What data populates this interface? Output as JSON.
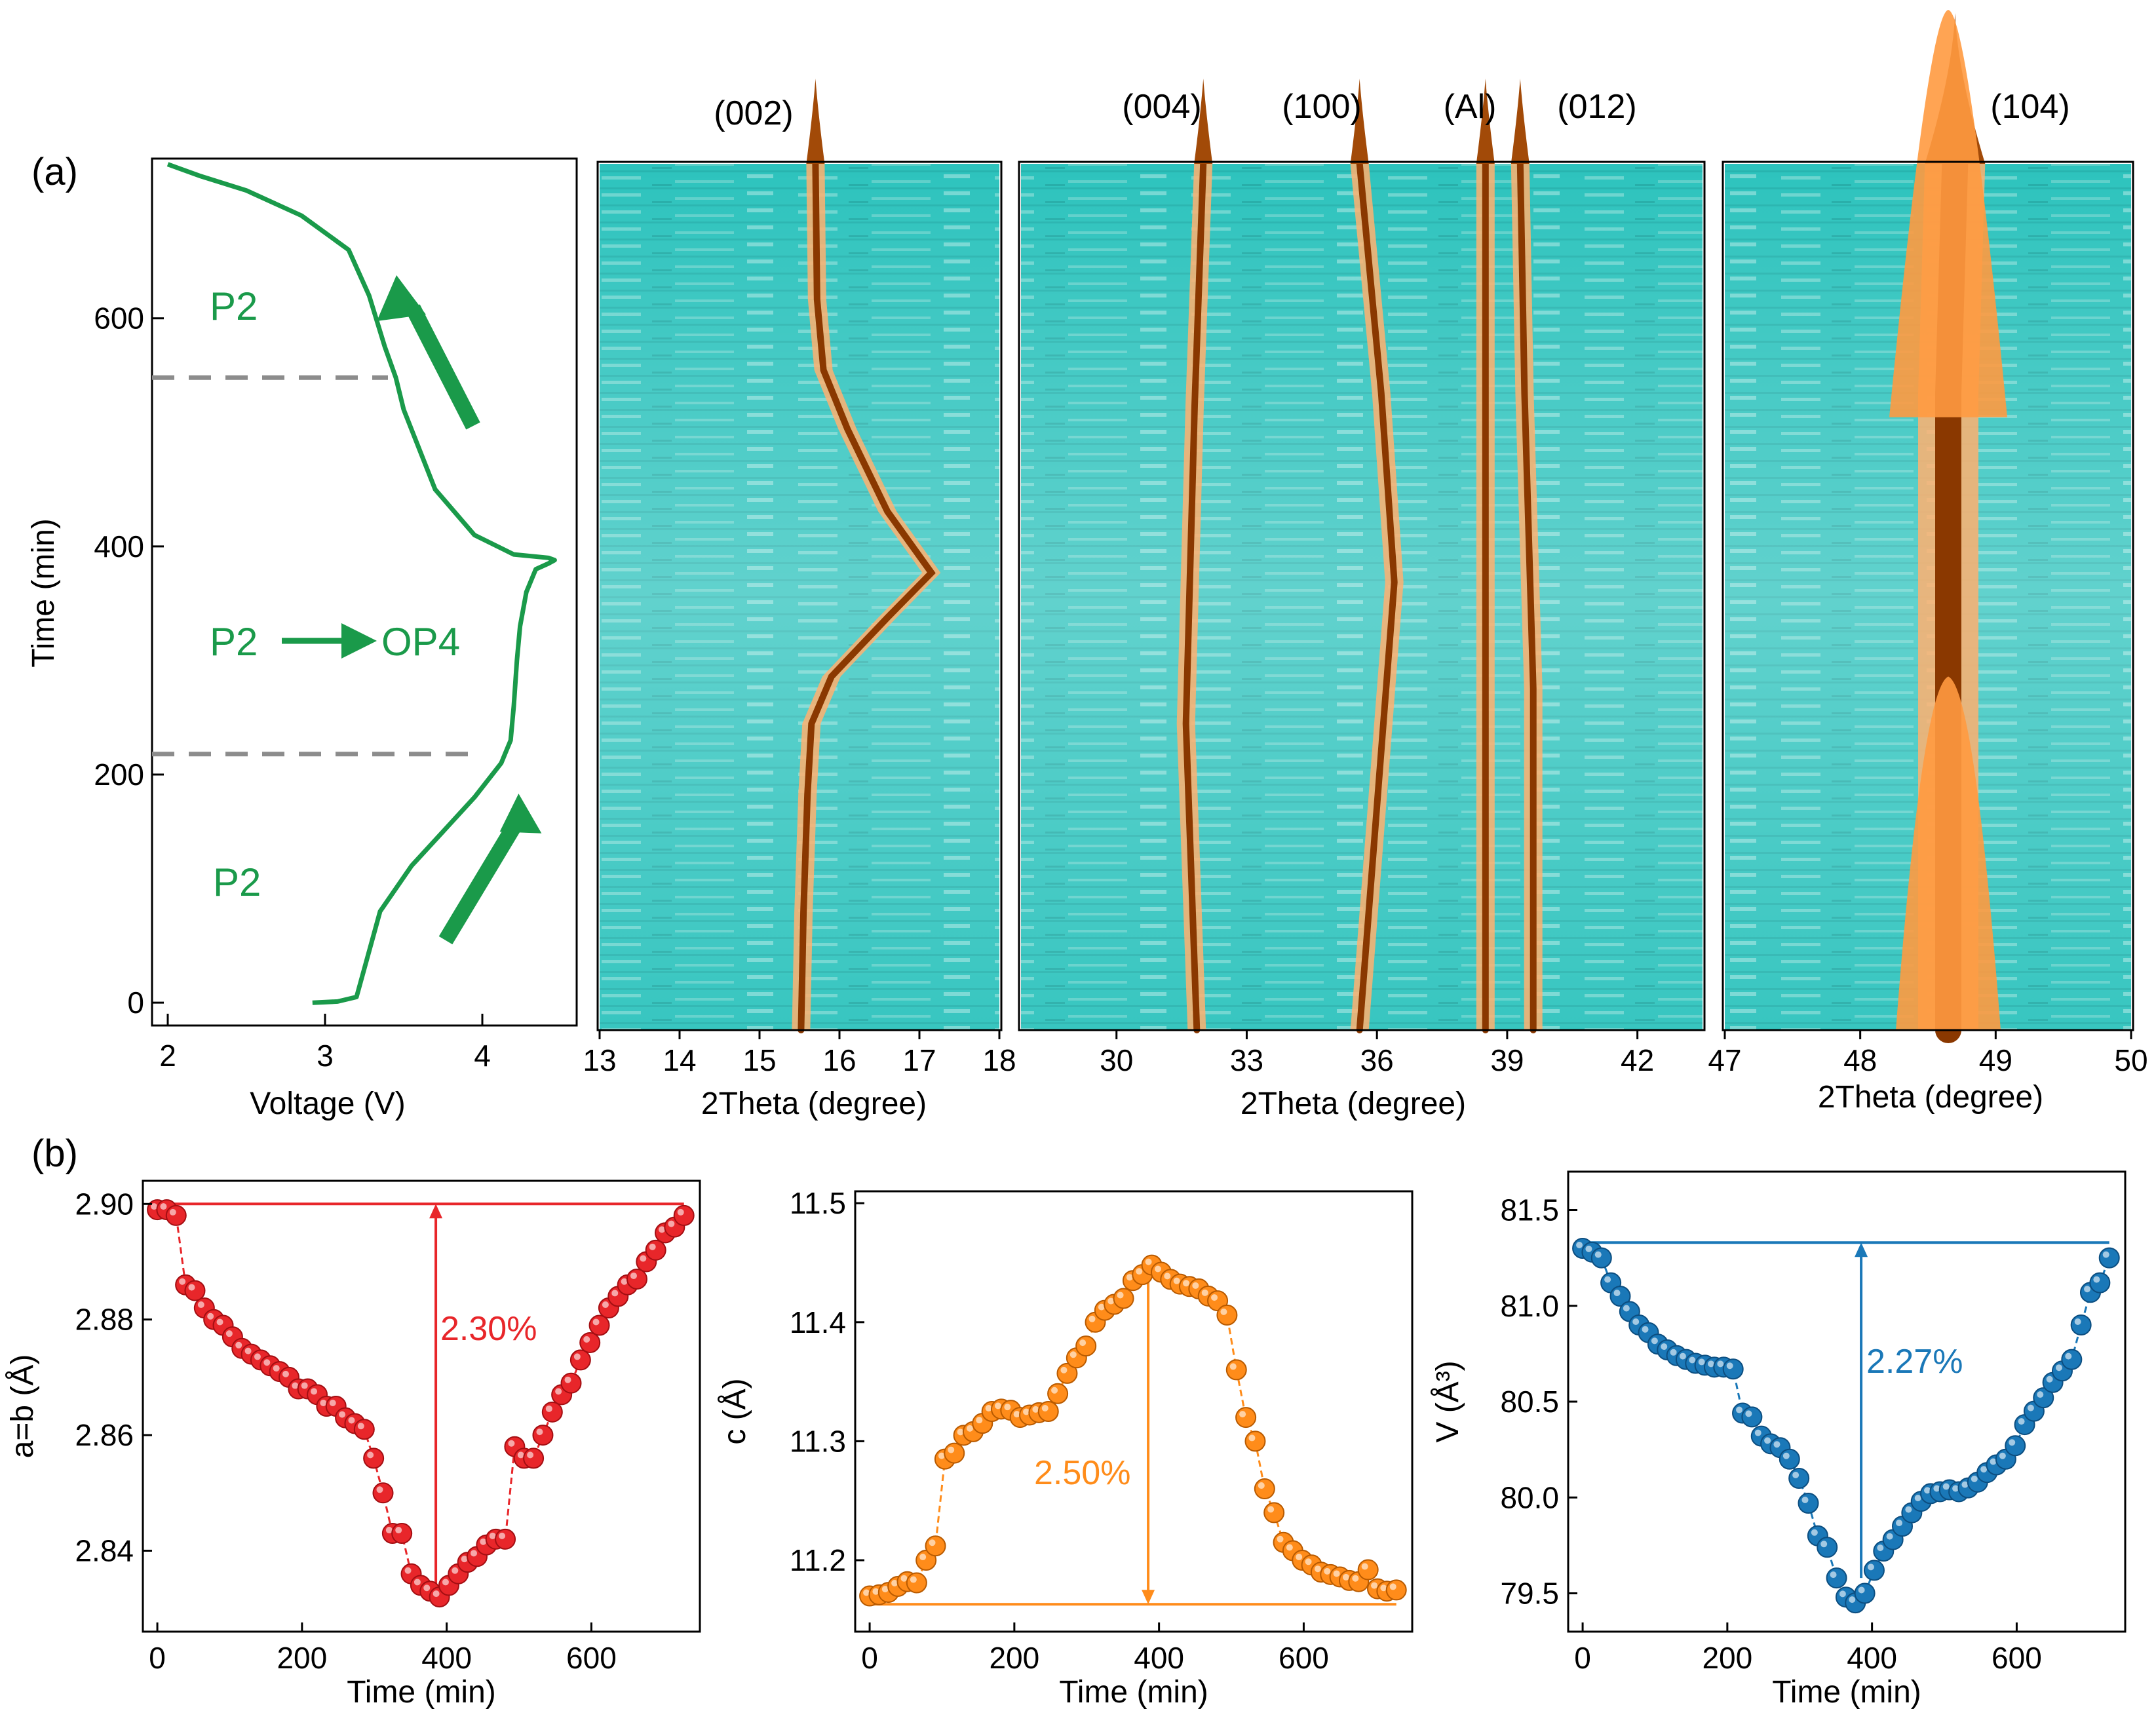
{
  "figure": {
    "panel_a": "(a)",
    "panel_b": "(b)",
    "colors": {
      "teal": "#2ec6c0",
      "orange": "#ff8a1e",
      "brown": "#7a2f00",
      "green": "#1a9a4a",
      "dash": "#8c8c8c",
      "red": "#e8262a",
      "amber": "#ff8c1a",
      "blue": "#1a78b8"
    }
  },
  "chart_data": [
    {
      "id": "voltage",
      "type": "line",
      "title": "",
      "xlabel": "Voltage (V)",
      "ylabel": "Time (min)",
      "xlim": [
        1.9,
        4.6
      ],
      "ylim": [
        -20,
        740
      ],
      "xticks": [
        "2",
        "3",
        "4"
      ],
      "yticks": [
        "0",
        "200",
        "400",
        "600"
      ],
      "annotations": {
        "phase_top": "P2",
        "phase_mid_from": "P2",
        "phase_mid_to": "OP4",
        "phase_bottom": "P2"
      },
      "phase_boundaries_min": [
        218,
        548
      ],
      "series": [
        {
          "name": "Voltage profile",
          "x": [
            2.92,
            3.08,
            3.2,
            3.25,
            3.35,
            3.55,
            3.75,
            3.95,
            4.12,
            4.18,
            4.2,
            4.22,
            4.24,
            4.28,
            4.34,
            4.42,
            4.46,
            4.42,
            4.2,
            3.95,
            3.7,
            3.5,
            3.45,
            3.38,
            3.28,
            3.15,
            2.85,
            2.5,
            2.2,
            2.0
          ],
          "y": [
            0,
            1,
            5,
            30,
            80,
            120,
            150,
            180,
            210,
            230,
            260,
            300,
            330,
            360,
            380,
            385,
            388,
            390,
            393,
            410,
            450,
            520,
            548,
            575,
            620,
            660,
            690,
            712,
            725,
            735
          ]
        }
      ]
    },
    {
      "id": "xrd-002",
      "type": "heatmap",
      "xlabel": "2Theta (degree)",
      "xlim": [
        13,
        18
      ],
      "xticks": [
        "13",
        "14",
        "15",
        "16",
        "17",
        "18"
      ],
      "peaks": [
        {
          "label": "(002)",
          "path": [
            [
              15.52,
              0
            ],
            [
              15.55,
              100
            ],
            [
              15.6,
              200
            ],
            [
              15.65,
              260
            ],
            [
              15.9,
              300
            ],
            [
              16.6,
              350
            ],
            [
              17.15,
              388
            ],
            [
              16.6,
              440
            ],
            [
              16.1,
              510
            ],
            [
              15.8,
              560
            ],
            [
              15.72,
              620
            ],
            [
              15.7,
              735
            ]
          ]
        }
      ]
    },
    {
      "id": "xrd-mid",
      "type": "heatmap",
      "xlabel": "2Theta (degree)",
      "xlim": [
        27.8,
        43.5
      ],
      "xticks": [
        "30",
        "33",
        "36",
        "39",
        "42"
      ],
      "peaks": [
        {
          "label": "(004)",
          "path": [
            [
              31.85,
              0
            ],
            [
              31.6,
              260
            ],
            [
              31.8,
              530
            ],
            [
              32.0,
              735
            ]
          ]
        },
        {
          "label": "(100)",
          "path": [
            [
              35.6,
              0
            ],
            [
              36.4,
              380
            ],
            [
              36.1,
              540
            ],
            [
              35.6,
              735
            ]
          ]
        },
        {
          "label": "(Al)",
          "path": [
            [
              38.5,
              0
            ],
            [
              38.5,
              735
            ]
          ]
        },
        {
          "label": "(012)",
          "path": [
            [
              39.6,
              0
            ],
            [
              39.6,
              290
            ],
            [
              39.4,
              540
            ],
            [
              39.3,
              735
            ]
          ]
        }
      ]
    },
    {
      "id": "xrd-104",
      "type": "heatmap",
      "xlabel": "2Theta (degree)",
      "xlim": [
        47,
        50
      ],
      "xticks": [
        "47",
        "48",
        "49",
        "50"
      ],
      "peaks": [
        {
          "label": "(104)",
          "path": [
            [
              48.65,
              0
            ],
            [
              48.65,
              290
            ],
            [
              48.65,
              540
            ],
            [
              48.7,
              735
            ]
          ]
        }
      ]
    },
    {
      "id": "a-param",
      "type": "scatter",
      "xlabel": "Time (min)",
      "ylabel": "a=b (Å)",
      "xlim": [
        -20,
        750
      ],
      "ylim": [
        2.826,
        2.904
      ],
      "xticks": [
        "0",
        "200",
        "400",
        "600"
      ],
      "yticks": [
        "2.84",
        "2.86",
        "2.88",
        "2.90"
      ],
      "annotation": "2.30%",
      "reference_line": 2.9,
      "arrow": {
        "x": 385,
        "from": 2.833,
        "to": 2.9,
        "direction": "up"
      },
      "series": [
        {
          "name": "a=b",
          "x": [
            0,
            13,
            26,
            39,
            52,
            65,
            78,
            91,
            104,
            117,
            130,
            143,
            156,
            169,
            182,
            195,
            208,
            221,
            234,
            247,
            260,
            273,
            286,
            299,
            312,
            325,
            338,
            351,
            364,
            377,
            390,
            403,
            416,
            429,
            442,
            455,
            468,
            481,
            494,
            507,
            520,
            533,
            546,
            559,
            572,
            585,
            598,
            611,
            624,
            637,
            650,
            663,
            676,
            689,
            702,
            715,
            728
          ],
          "y": [
            2.899,
            2.899,
            2.898,
            2.886,
            2.885,
            2.882,
            2.88,
            2.879,
            2.877,
            2.875,
            2.874,
            2.873,
            2.872,
            2.871,
            2.87,
            2.868,
            2.868,
            2.867,
            2.865,
            2.865,
            2.863,
            2.862,
            2.861,
            2.856,
            2.85,
            2.843,
            2.843,
            2.836,
            2.834,
            2.833,
            2.832,
            2.834,
            2.836,
            2.838,
            2.839,
            2.841,
            2.842,
            2.842,
            2.858,
            2.856,
            2.856,
            2.86,
            2.864,
            2.867,
            2.869,
            2.873,
            2.876,
            2.879,
            2.882,
            2.884,
            2.886,
            2.887,
            2.89,
            2.892,
            2.895,
            2.896,
            2.898
          ]
        }
      ]
    },
    {
      "id": "c-param",
      "type": "scatter",
      "xlabel": "Time (min)",
      "ylabel": "c (Å)",
      "xlim": [
        -20,
        750
      ],
      "ylim": [
        11.14,
        11.51
      ],
      "xticks": [
        "0",
        "200",
        "400",
        "600"
      ],
      "yticks": [
        "11.2",
        "11.3",
        "11.4",
        "11.5"
      ],
      "annotation": "2.50%",
      "reference_line": 11.163,
      "arrow": {
        "x": 385,
        "from": 11.44,
        "to": 11.163,
        "direction": "down"
      },
      "series": [
        {
          "name": "c",
          "x": [
            0,
            13,
            26,
            39,
            52,
            65,
            78,
            91,
            104,
            117,
            130,
            143,
            156,
            169,
            182,
            195,
            208,
            221,
            234,
            247,
            260,
            273,
            286,
            299,
            312,
            325,
            338,
            351,
            364,
            377,
            390,
            403,
            416,
            429,
            442,
            455,
            468,
            481,
            494,
            507,
            520,
            533,
            546,
            559,
            572,
            585,
            598,
            611,
            624,
            637,
            650,
            663,
            676,
            689,
            702,
            715,
            728
          ],
          "y": [
            11.17,
            11.171,
            11.173,
            11.178,
            11.182,
            11.181,
            11.2,
            11.212,
            11.285,
            11.29,
            11.305,
            11.308,
            11.315,
            11.325,
            11.327,
            11.326,
            11.32,
            11.322,
            11.324,
            11.325,
            11.34,
            11.357,
            11.37,
            11.38,
            11.4,
            11.41,
            11.415,
            11.42,
            11.435,
            11.44,
            11.448,
            11.442,
            11.436,
            11.432,
            11.43,
            11.428,
            11.422,
            11.418,
            11.406,
            11.36,
            11.32,
            11.3,
            11.26,
            11.24,
            11.215,
            11.208,
            11.2,
            11.196,
            11.19,
            11.188,
            11.186,
            11.183,
            11.182,
            11.192,
            11.176,
            11.174,
            11.175
          ]
        }
      ]
    },
    {
      "id": "volume",
      "type": "scatter",
      "xlabel": "Time (min)",
      "ylabel": "V (Å³)",
      "xlim": [
        -20,
        750
      ],
      "ylim": [
        79.3,
        81.7
      ],
      "xticks": [
        "0",
        "200",
        "400",
        "600"
      ],
      "yticks": [
        "79.5",
        "80.0",
        "80.5",
        "81.0",
        "81.5"
      ],
      "annotation": "2.27%",
      "reference_line": 81.33,
      "arrow": {
        "x": 385,
        "from": 79.58,
        "to": 81.33,
        "direction": "up"
      },
      "series": [
        {
          "name": "V",
          "x": [
            0,
            13,
            26,
            39,
            52,
            65,
            78,
            91,
            104,
            117,
            130,
            143,
            156,
            169,
            182,
            195,
            208,
            221,
            234,
            247,
            260,
            273,
            286,
            299,
            312,
            325,
            338,
            351,
            364,
            377,
            390,
            403,
            416,
            429,
            442,
            455,
            468,
            481,
            494,
            507,
            520,
            533,
            546,
            559,
            572,
            585,
            598,
            611,
            624,
            637,
            650,
            663,
            676,
            689,
            702,
            715,
            728
          ],
          "y": [
            81.3,
            81.28,
            81.25,
            81.12,
            81.05,
            80.97,
            80.9,
            80.86,
            80.8,
            80.77,
            80.74,
            80.72,
            80.7,
            80.69,
            80.68,
            80.68,
            80.67,
            80.44,
            80.42,
            80.32,
            80.28,
            80.26,
            80.2,
            80.1,
            79.97,
            79.8,
            79.74,
            79.58,
            79.48,
            79.45,
            79.5,
            79.62,
            79.72,
            79.78,
            79.85,
            79.92,
            79.98,
            80.02,
            80.03,
            80.04,
            80.03,
            80.05,
            80.08,
            80.13,
            80.17,
            80.2,
            80.27,
            80.38,
            80.45,
            80.52,
            80.6,
            80.66,
            80.72,
            80.9,
            81.07,
            81.12,
            81.25
          ]
        }
      ]
    }
  ]
}
